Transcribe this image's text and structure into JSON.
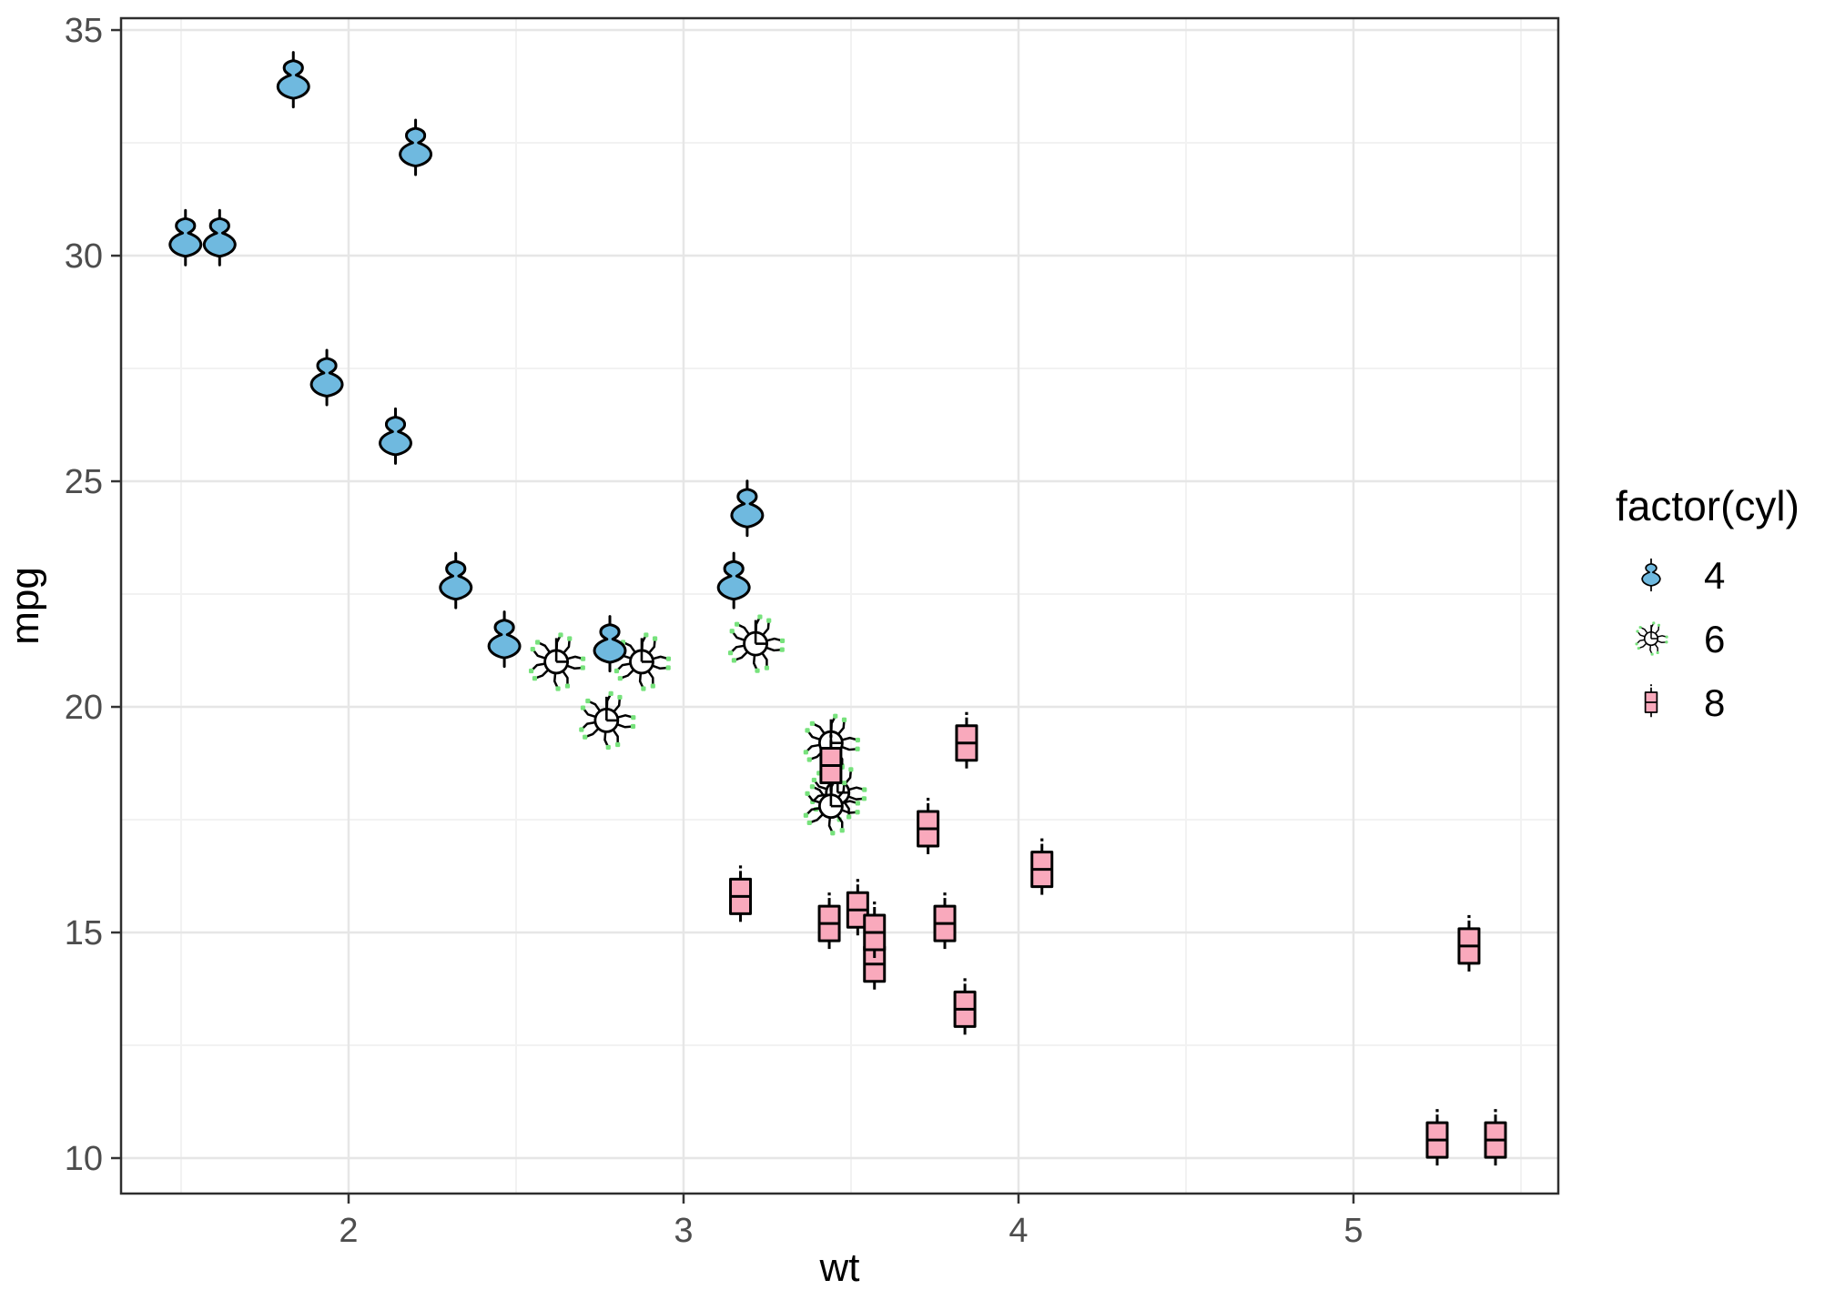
{
  "chart_data": {
    "type": "scatter",
    "title": "",
    "xlabel": "wt",
    "ylabel": "mpg",
    "xlim": [
      1.3207,
      5.6115
    ],
    "ylim": [
      9.214,
      35.263
    ],
    "x_ticks": [
      2,
      3,
      4,
      5
    ],
    "x_minor_ticks": [
      1.5,
      2.5,
      3.5,
      4.5,
      5.5
    ],
    "y_ticks": [
      10,
      15,
      20,
      25,
      30,
      35
    ],
    "y_minor_ticks": [
      12.5,
      17.5,
      22.5,
      27.5,
      32.5
    ],
    "grid": true,
    "colors": {
      "panel_background": "#FFFFFF",
      "panel_border": "#2E2E2E",
      "grid_major": "#E6E6E6",
      "grid_minor": "#F2F2F2",
      "tick_mark": "#333333",
      "tick_label": "#4D4D4D",
      "axis_title": "#000000",
      "glyph_outline": "#000000",
      "blue_fill": "#6FB9DF",
      "pink_fill": "#F9A9BC",
      "green_tip": "#77E27C",
      "sun_fill": "#FFFFFF"
    },
    "legend": {
      "title": "factor(cyl)",
      "position": "right",
      "entries": [
        {
          "label": "4",
          "glyph": "violin"
        },
        {
          "label": "6",
          "glyph": "sun"
        },
        {
          "label": "8",
          "glyph": "box"
        }
      ]
    },
    "groups": {
      "4": {
        "glyph": "violin",
        "fill": "#6FB9DF"
      },
      "6": {
        "glyph": "sun",
        "fill": "#FFFFFF",
        "tip": "#77E27C"
      },
      "8": {
        "glyph": "box",
        "fill": "#F9A9BC"
      }
    },
    "points": [
      {
        "wt": 2.62,
        "mpg": 21.0,
        "cyl": 6
      },
      {
        "wt": 2.875,
        "mpg": 21.0,
        "cyl": 6
      },
      {
        "wt": 2.32,
        "mpg": 22.8,
        "cyl": 4
      },
      {
        "wt": 3.215,
        "mpg": 21.4,
        "cyl": 6
      },
      {
        "wt": 3.44,
        "mpg": 18.7,
        "cyl": 8
      },
      {
        "wt": 3.46,
        "mpg": 18.1,
        "cyl": 6
      },
      {
        "wt": 3.57,
        "mpg": 14.3,
        "cyl": 8
      },
      {
        "wt": 3.19,
        "mpg": 24.4,
        "cyl": 4
      },
      {
        "wt": 3.15,
        "mpg": 22.8,
        "cyl": 4
      },
      {
        "wt": 3.44,
        "mpg": 19.2,
        "cyl": 6
      },
      {
        "wt": 3.44,
        "mpg": 17.8,
        "cyl": 6
      },
      {
        "wt": 4.07,
        "mpg": 16.4,
        "cyl": 8
      },
      {
        "wt": 3.73,
        "mpg": 17.3,
        "cyl": 8
      },
      {
        "wt": 3.78,
        "mpg": 15.2,
        "cyl": 8
      },
      {
        "wt": 5.25,
        "mpg": 10.4,
        "cyl": 8
      },
      {
        "wt": 5.424,
        "mpg": 10.4,
        "cyl": 8
      },
      {
        "wt": 5.345,
        "mpg": 14.7,
        "cyl": 8
      },
      {
        "wt": 2.2,
        "mpg": 32.4,
        "cyl": 4
      },
      {
        "wt": 1.615,
        "mpg": 30.4,
        "cyl": 4
      },
      {
        "wt": 1.835,
        "mpg": 33.9,
        "cyl": 4
      },
      {
        "wt": 2.465,
        "mpg": 21.5,
        "cyl": 4
      },
      {
        "wt": 3.52,
        "mpg": 15.5,
        "cyl": 8
      },
      {
        "wt": 3.435,
        "mpg": 15.2,
        "cyl": 8
      },
      {
        "wt": 3.84,
        "mpg": 13.3,
        "cyl": 8
      },
      {
        "wt": 3.845,
        "mpg": 19.2,
        "cyl": 8
      },
      {
        "wt": 1.935,
        "mpg": 27.3,
        "cyl": 4
      },
      {
        "wt": 2.14,
        "mpg": 26.0,
        "cyl": 4
      },
      {
        "wt": 1.513,
        "mpg": 30.4,
        "cyl": 4
      },
      {
        "wt": 3.17,
        "mpg": 15.8,
        "cyl": 8
      },
      {
        "wt": 2.77,
        "mpg": 19.7,
        "cyl": 6
      },
      {
        "wt": 3.57,
        "mpg": 15.0,
        "cyl": 8
      },
      {
        "wt": 2.78,
        "mpg": 21.4,
        "cyl": 4
      }
    ]
  }
}
